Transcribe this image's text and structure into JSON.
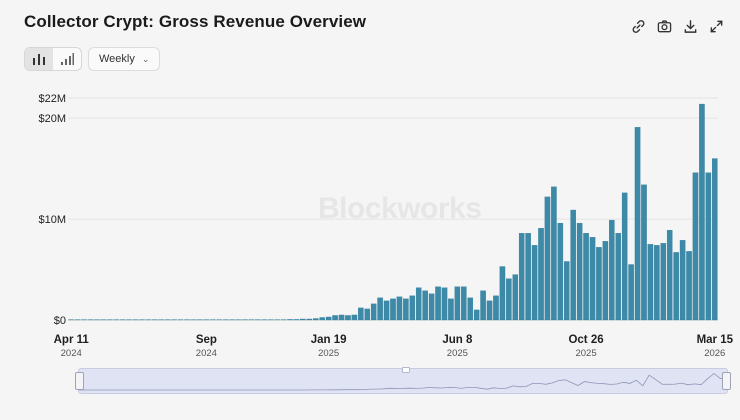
{
  "title": "Collector Crypt: Gross Revenue Overview",
  "toolbar": {
    "icons": [
      "link-icon",
      "camera-icon",
      "download-icon",
      "expand-icon"
    ]
  },
  "view_toggle": {
    "options": [
      "bar-chart-icon",
      "signal-bars-icon"
    ],
    "active": 0
  },
  "interval": {
    "label": "Weekly"
  },
  "watermark": "Blockworks",
  "colors": {
    "bar": "#3c8aa8",
    "bar_edge": "#2e7896",
    "grid": "#e4e4e4",
    "navigator": "#dfe3f3"
  },
  "chart_data": {
    "type": "bar",
    "title": "Collector Crypt: Gross Revenue Overview",
    "xlabel": "",
    "ylabel": "",
    "ylim": [
      0,
      22
    ],
    "y_unit": "$M",
    "y_ticks": [
      {
        "value": 0,
        "label": "$0"
      },
      {
        "value": 10,
        "label": "$10M"
      },
      {
        "value": 20,
        "label": "$20M"
      },
      {
        "value": 22,
        "label": "$22M"
      }
    ],
    "x_ticks": [
      {
        "week": 0,
        "label": "Apr 11",
        "sub": "2024"
      },
      {
        "week": 21,
        "label": "Sep",
        "sub": "2024"
      },
      {
        "week": 40,
        "label": "Jan 19",
        "sub": "2025"
      },
      {
        "week": 60,
        "label": "Jun 8",
        "sub": "2025"
      },
      {
        "week": 80,
        "label": "Oct 26",
        "sub": "2025"
      },
      {
        "week": 100,
        "label": "Mar 15",
        "sub": "2026"
      }
    ],
    "values": [
      0,
      0,
      0,
      0,
      0,
      0,
      0,
      0,
      0,
      0,
      0,
      0,
      0,
      0,
      0,
      0,
      0,
      0,
      0,
      0,
      0,
      0,
      0,
      0,
      0,
      0,
      0,
      0,
      0,
      0,
      0,
      0,
      0,
      0,
      0.05,
      0.05,
      0.1,
      0.1,
      0.15,
      0.25,
      0.3,
      0.45,
      0.5,
      0.45,
      0.5,
      1.2,
      1.1,
      1.6,
      2.2,
      1.9,
      2.1,
      2.3,
      2.1,
      2.4,
      3.2,
      2.9,
      2.6,
      3.3,
      3.2,
      2.1,
      3.3,
      3.3,
      2.2,
      1.0,
      2.9,
      1.9,
      2.4,
      5.3,
      4.1,
      4.5,
      8.6,
      8.6,
      7.4,
      9.1,
      12.2,
      13.2,
      9.6,
      5.8,
      10.9,
      9.6,
      8.6,
      8.2,
      7.2,
      7.8,
      9.9,
      8.6,
      12.6,
      5.5,
      19.1,
      13.4,
      7.5,
      7.4,
      7.6,
      8.9,
      6.7,
      7.9,
      6.8,
      14.6,
      21.4,
      14.6,
      16.0
    ]
  },
  "navigator": {
    "sparkline": [
      0,
      0,
      0,
      0,
      0,
      0,
      0,
      0,
      0,
      0,
      0,
      0,
      0,
      0,
      0,
      0,
      0,
      0,
      0,
      0,
      0,
      0,
      0,
      0,
      0,
      0,
      0,
      0,
      0,
      0,
      0,
      0,
      0,
      0,
      0.05,
      0.05,
      0.1,
      0.1,
      0.15,
      0.25,
      0.3,
      0.45,
      0.5,
      0.45,
      0.5,
      1.2,
      1.1,
      1.6,
      2.2,
      1.9,
      2.1,
      2.3,
      2.1,
      2.4,
      3.2,
      2.9,
      2.6,
      3.3,
      3.2,
      2.1,
      3.3,
      3.3,
      2.2,
      1.0,
      2.9,
      1.9,
      2.4,
      5.3,
      4.1,
      4.5,
      8.6,
      8.6,
      7.4,
      9.1,
      12.2,
      13.2,
      9.6,
      5.8,
      10.9,
      9.6,
      8.6,
      8.2,
      7.2,
      7.8,
      9.9,
      8.6,
      12.6,
      5.5,
      19.1,
      13.4,
      7.5,
      7.4,
      7.6,
      8.9,
      6.7,
      7.9,
      6.8,
      14.6,
      21.4,
      14.6,
      16.0
    ]
  }
}
